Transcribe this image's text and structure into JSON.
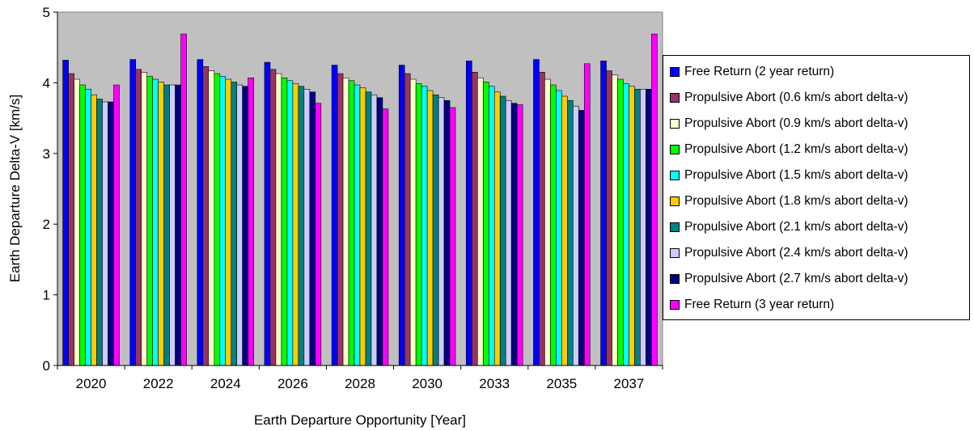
{
  "chart_data": {
    "type": "bar",
    "title": "",
    "xlabel": "Earth Departure Opportunity [Year]",
    "ylabel": "Earth Departure Delta-V [km/s]",
    "ylim": [
      0,
      5
    ],
    "yticks": [
      "0",
      "1",
      "2",
      "3",
      "4",
      "5"
    ],
    "grid": false,
    "legend_position": "right",
    "plot_background": "#c0c0c0",
    "categories": [
      "2020",
      "2022",
      "2024",
      "2026",
      "2028",
      "2030",
      "2033",
      "2035",
      "2037"
    ],
    "series": [
      {
        "name": "Free Return (2 year return)",
        "color": "#0000ff",
        "values": [
          4.32,
          4.33,
          4.33,
          4.29,
          4.25,
          4.25,
          4.31,
          4.33,
          4.31
        ]
      },
      {
        "name": "Propulsive Abort (0.6 km/s abort delta-v)",
        "color": "#993366",
        "values": [
          4.13,
          4.19,
          4.23,
          4.19,
          4.13,
          4.13,
          4.15,
          4.15,
          4.17
        ]
      },
      {
        "name": "Propulsive Abort (0.9 km/s abort delta-v)",
        "color": "#ffffcc",
        "values": [
          4.05,
          4.15,
          4.17,
          4.13,
          4.07,
          4.05,
          4.07,
          4.05,
          4.11
        ]
      },
      {
        "name": "Propulsive Abort (1.2 km/s abort delta-v)",
        "color": "#00ff00",
        "values": [
          3.97,
          4.09,
          4.13,
          4.07,
          4.03,
          3.99,
          4.01,
          3.97,
          4.05
        ]
      },
      {
        "name": "Propulsive Abort (1.5 km/s abort delta-v)",
        "color": "#00ffff",
        "values": [
          3.91,
          4.05,
          4.09,
          4.03,
          3.97,
          3.95,
          3.95,
          3.89,
          3.99
        ]
      },
      {
        "name": "Propulsive Abort (1.8 km/s abort delta-v)",
        "color": "#ffcc00",
        "values": [
          3.83,
          4.01,
          4.05,
          3.99,
          3.93,
          3.89,
          3.87,
          3.81,
          3.95
        ]
      },
      {
        "name": "Propulsive Abort (2.1 km/s abort delta-v)",
        "color": "#008080",
        "values": [
          3.77,
          3.97,
          4.01,
          3.95,
          3.87,
          3.83,
          3.81,
          3.75,
          3.91
        ]
      },
      {
        "name": "Propulsive Abort (2.4 km/s abort delta-v)",
        "color": "#ccccff",
        "values": [
          3.73,
          3.97,
          3.97,
          3.91,
          3.83,
          3.79,
          3.75,
          3.67,
          3.91
        ]
      },
      {
        "name": "Propulsive Abort (2.7 km/s abort delta-v)",
        "color": "#000080",
        "values": [
          3.73,
          3.97,
          3.95,
          3.87,
          3.79,
          3.75,
          3.71,
          3.61,
          3.91
        ]
      },
      {
        "name": "Free Return (3 year return)",
        "color": "#ff00ff",
        "values": [
          3.97,
          4.69,
          4.07,
          3.71,
          3.63,
          3.65,
          3.69,
          4.27,
          4.69
        ]
      }
    ]
  }
}
